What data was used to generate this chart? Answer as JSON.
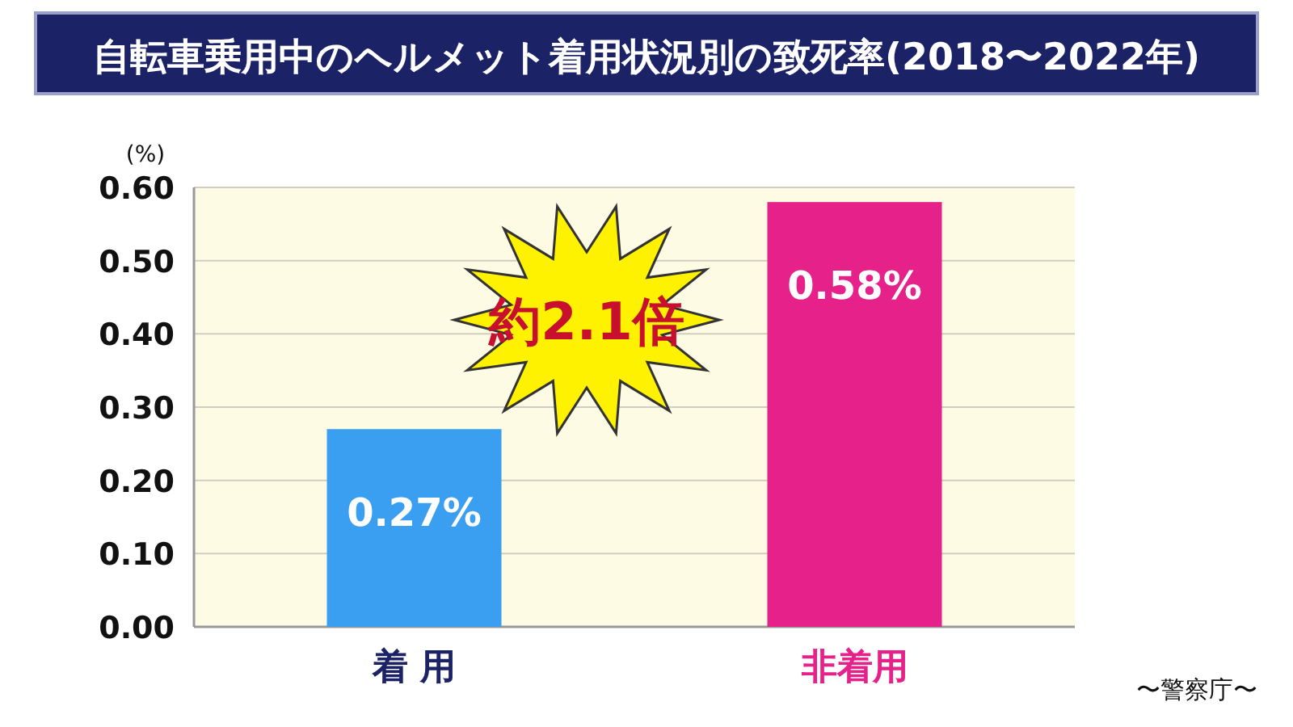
{
  "chart_data": {
    "type": "bar",
    "title": "自転車乗用中のヘルメット着用状況別の致死率(2018〜2022年)",
    "ylabel": "(%)",
    "categories": [
      "着 用",
      "非着用"
    ],
    "values": [
      0.27,
      0.58
    ],
    "colors": [
      "#3a9ff0",
      "#e6218a"
    ],
    "value_labels": [
      "0.27%",
      "0.58%"
    ],
    "ylim": [
      0,
      0.6
    ],
    "yticks": [
      {
        "value": 0,
        "label": "0.00"
      },
      {
        "value": 0.1,
        "label": "0.10"
      },
      {
        "value": 0.2,
        "label": "0.20"
      },
      {
        "value": 0.3,
        "label": "0.30"
      },
      {
        "value": 0.4,
        "label": "0.40"
      },
      {
        "value": 0.5,
        "label": "0.50"
      },
      {
        "value": 0.6,
        "label": "0.60"
      }
    ],
    "grid": "y",
    "annotations": [
      "約2.1倍",
      "〜警察庁〜"
    ]
  }
}
